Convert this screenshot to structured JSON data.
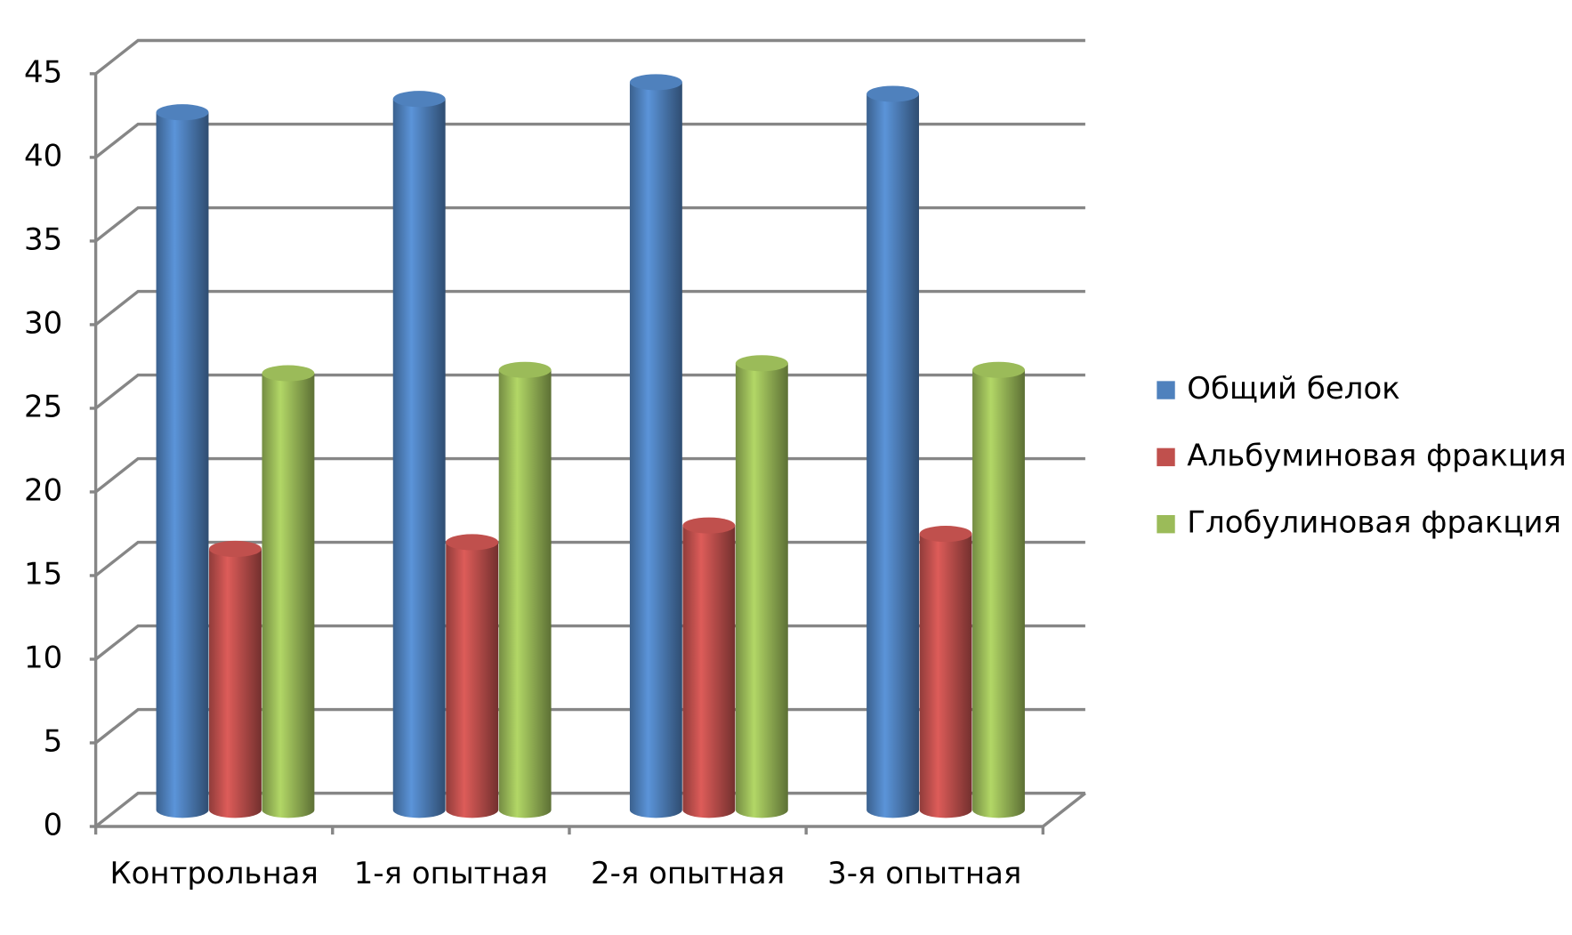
{
  "chart_data": {
    "type": "bar3d",
    "categories": [
      "Контрольная",
      "1-я опытная",
      "2-я опытная",
      "3-я опытная"
    ],
    "series": [
      {
        "name": "Общий белок",
        "color": "#4f81bd",
        "values": [
          41.7,
          42.5,
          43.5,
          42.8
        ]
      },
      {
        "name": "Альбуминовая фракция",
        "color": "#c0504d",
        "values": [
          15.6,
          16.0,
          17.0,
          16.5
        ]
      },
      {
        "name": "Глобулиновая фракция",
        "color": "#9bbb59",
        "values": [
          26.1,
          26.3,
          26.7,
          26.3
        ]
      }
    ],
    "ylim": [
      0,
      45
    ],
    "yticks": [
      0,
      5,
      10,
      15,
      20,
      25,
      30,
      35,
      40,
      45
    ],
    "grid": true,
    "legend": "right"
  }
}
